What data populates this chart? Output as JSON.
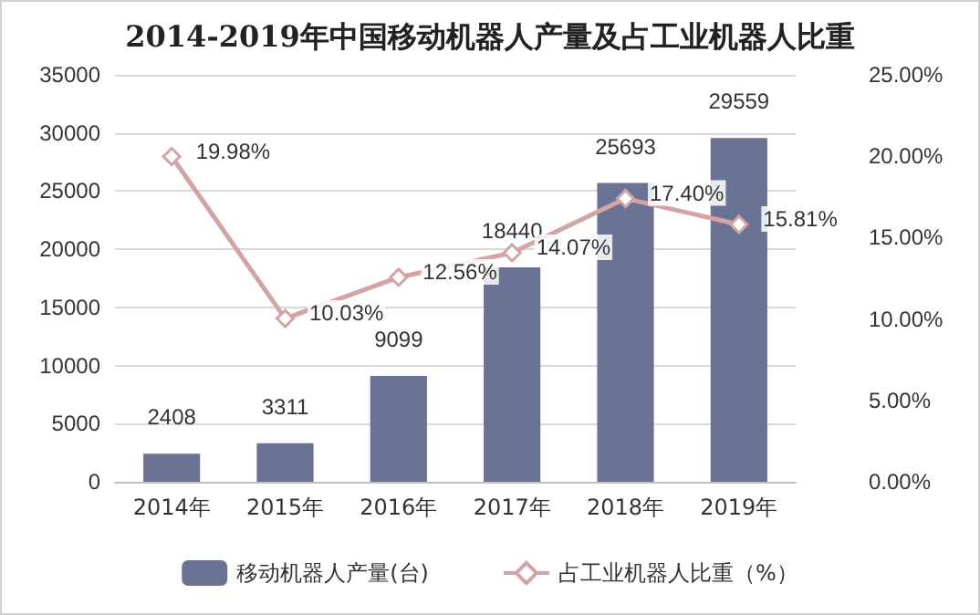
{
  "chart_data": {
    "type": "line",
    "title": "2014-2019年中国移动机器人产量及占工业机器人比重",
    "categories": [
      "2014年",
      "2015年",
      "2016年",
      "2017年",
      "2018年",
      "2019年"
    ],
    "series": [
      {
        "name": "移动机器人产量(台)",
        "type": "bar",
        "color": "#6b7394",
        "values": [
          2408,
          3311,
          9099,
          18440,
          25693,
          29559
        ]
      },
      {
        "name": "占工业机器人比重（%）",
        "axis": "y2",
        "color": "#d4a3a6",
        "marker": "diamond",
        "values": [
          19.98,
          10.03,
          12.56,
          14.07,
          17.4,
          15.81
        ],
        "value_labels": [
          "19.98%",
          "10.03%",
          "12.56%",
          "14.07%",
          "17.40%",
          "15.81%"
        ]
      }
    ],
    "ylim": [
      0,
      35000
    ],
    "yticks": [
      0,
      5000,
      10000,
      15000,
      20000,
      25000,
      30000,
      35000
    ],
    "y2lim": [
      0,
      25
    ],
    "y2ticks": [
      {
        "value": 0,
        "label": "0.00%"
      },
      {
        "value": 5,
        "label": "5.00%"
      },
      {
        "value": 10,
        "label": "10.00%"
      },
      {
        "value": 15,
        "label": "15.00%"
      },
      {
        "value": 20,
        "label": "20.00%"
      },
      {
        "value": 25,
        "label": "25.00%"
      }
    ],
    "data_labels": true,
    "grid": "y",
    "legend": "bottom"
  }
}
